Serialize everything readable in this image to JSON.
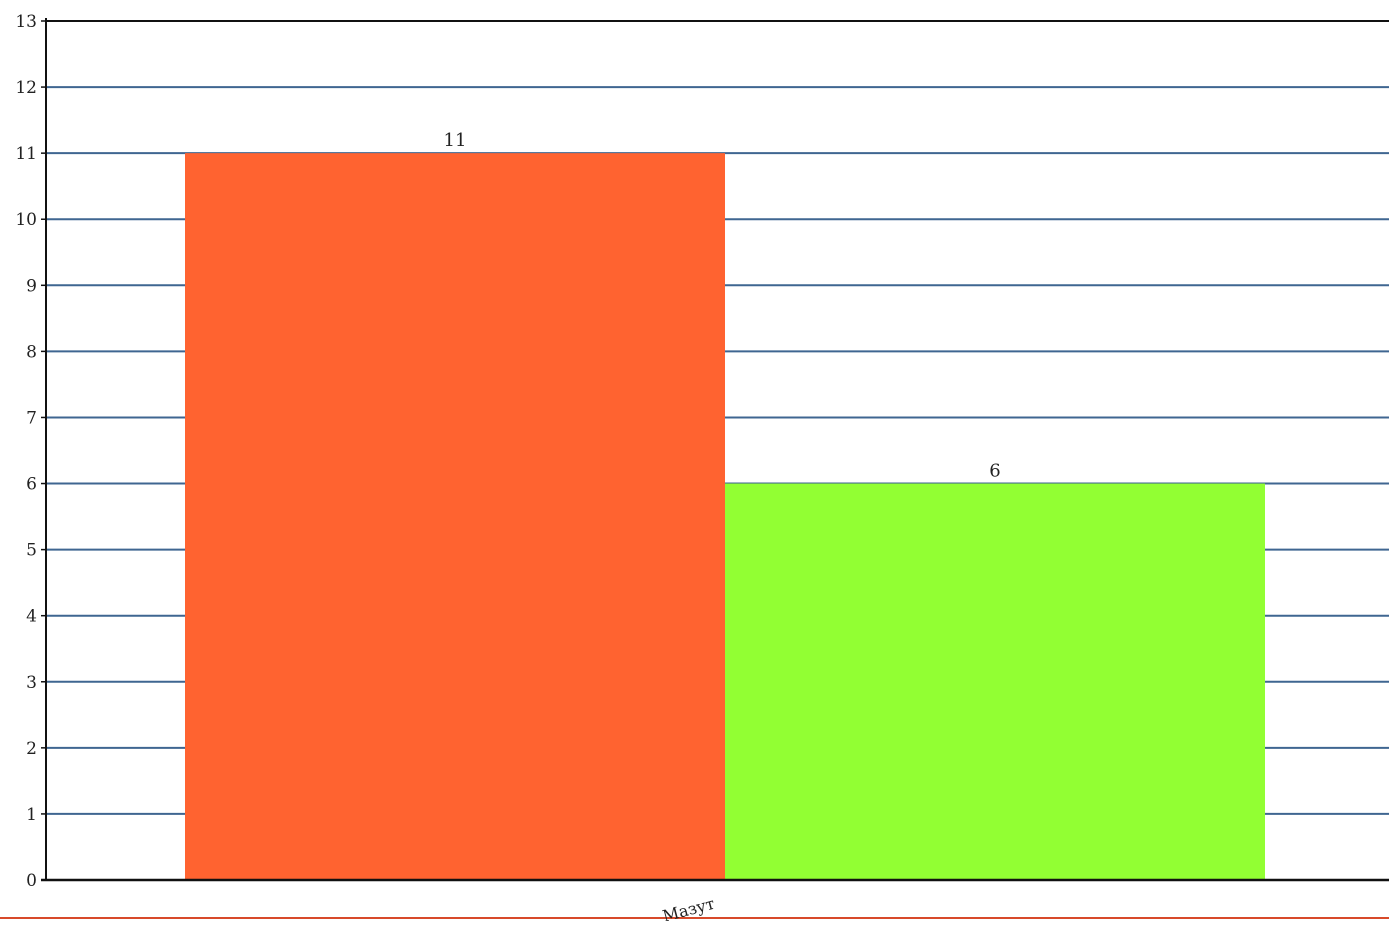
{
  "chart_data": {
    "type": "bar",
    "categories": [
      "Мазут"
    ],
    "series": [
      {
        "values": [
          11
        ],
        "color": "#ff6330"
      },
      {
        "values": [
          6
        ],
        "color": "#92ff33"
      }
    ],
    "data_labels": [
      "11",
      "6"
    ],
    "ylim": [
      0,
      13
    ],
    "yticks": [
      0,
      1,
      2,
      3,
      4,
      5,
      6,
      7,
      8,
      9,
      10,
      11,
      12,
      13
    ],
    "grid": true,
    "title": "",
    "xlabel": "",
    "ylabel": ""
  },
  "colors": {
    "gridline": "#3f6691",
    "axis": "#111111",
    "bottom_rule": "#d84a2a"
  }
}
